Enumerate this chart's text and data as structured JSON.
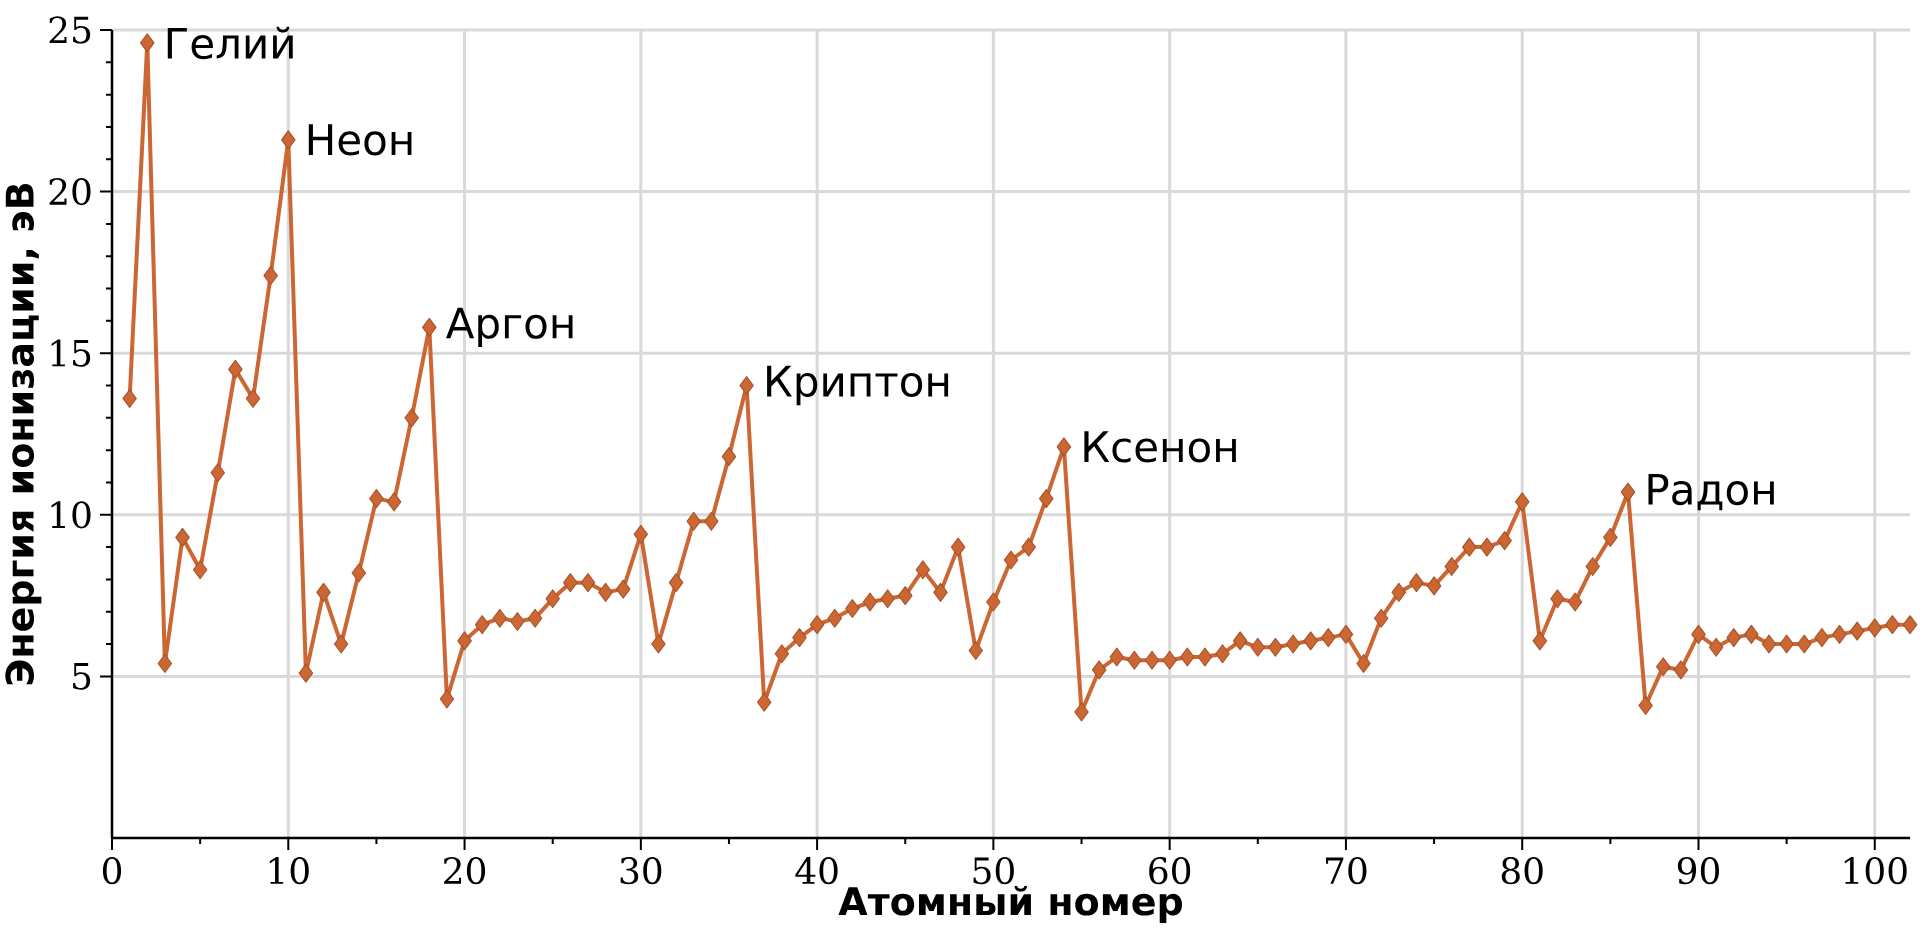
{
  "chart_data": {
    "type": "line",
    "xlabel": "Атомный номер",
    "ylabel": "Энергия ионизации, эВ",
    "x": [
      1,
      2,
      3,
      4,
      5,
      6,
      7,
      8,
      9,
      10,
      11,
      12,
      13,
      14,
      15,
      16,
      17,
      18,
      19,
      20,
      21,
      22,
      23,
      24,
      25,
      26,
      27,
      28,
      29,
      30,
      31,
      32,
      33,
      34,
      35,
      36,
      37,
      38,
      39,
      40,
      41,
      42,
      43,
      44,
      45,
      46,
      47,
      48,
      49,
      50,
      51,
      52,
      53,
      54,
      55,
      56,
      57,
      58,
      59,
      60,
      61,
      62,
      63,
      64,
      65,
      66,
      67,
      68,
      69,
      70,
      71,
      72,
      73,
      74,
      75,
      76,
      77,
      78,
      79,
      80,
      81,
      82,
      83,
      84,
      85,
      86,
      87,
      88,
      89,
      90,
      91,
      92,
      93,
      94,
      95,
      96,
      97,
      98,
      99,
      100,
      101,
      102
    ],
    "series": [
      {
        "color": "#cc6633",
        "values": [
          13.6,
          24.6,
          5.4,
          9.3,
          8.3,
          11.3,
          14.5,
          13.6,
          17.4,
          21.6,
          5.1,
          7.6,
          6.0,
          8.2,
          10.5,
          10.4,
          13.0,
          15.8,
          4.3,
          6.1,
          6.6,
          6.8,
          6.7,
          6.8,
          7.4,
          7.9,
          7.9,
          7.6,
          7.7,
          9.4,
          6.0,
          7.9,
          9.8,
          9.8,
          11.8,
          14.0,
          4.2,
          5.7,
          6.2,
          6.6,
          6.8,
          7.1,
          7.3,
          7.4,
          7.5,
          8.3,
          7.6,
          9.0,
          5.8,
          7.3,
          8.6,
          9.0,
          10.5,
          12.1,
          3.9,
          5.2,
          5.6,
          5.5,
          5.5,
          5.5,
          5.6,
          5.6,
          5.7,
          6.1,
          5.9,
          5.9,
          6.0,
          6.1,
          6.2,
          6.3,
          5.4,
          6.8,
          7.6,
          7.9,
          7.8,
          8.4,
          9.0,
          9.0,
          9.2,
          10.4,
          6.1,
          7.4,
          7.3,
          8.4,
          9.3,
          10.7,
          4.1,
          5.3,
          5.2,
          6.3,
          5.9,
          6.2,
          6.3,
          6.0,
          6.0,
          6.0,
          6.2,
          6.3,
          6.4,
          6.5,
          6.6,
          6.6
        ]
      }
    ],
    "xlim": [
      0,
      102
    ],
    "ylim": [
      0,
      25
    ],
    "xticks": [
      0,
      10,
      20,
      30,
      40,
      50,
      60,
      70,
      80,
      90,
      100
    ],
    "yticks": [
      5,
      10,
      15,
      20,
      25
    ],
    "grid": true,
    "marker": "diamond",
    "line_style": "solid",
    "annotations": [
      {
        "text": "Гелий",
        "x": 2,
        "y": 24.6
      },
      {
        "text": "Неон",
        "x": 10,
        "y": 21.6
      },
      {
        "text": "Аргон",
        "x": 18,
        "y": 15.8
      },
      {
        "text": "Криптон",
        "x": 36,
        "y": 14.0
      },
      {
        "text": "Ксенон",
        "x": 54,
        "y": 12.1
      },
      {
        "text": "Радон",
        "x": 86,
        "y": 10.7
      }
    ]
  }
}
